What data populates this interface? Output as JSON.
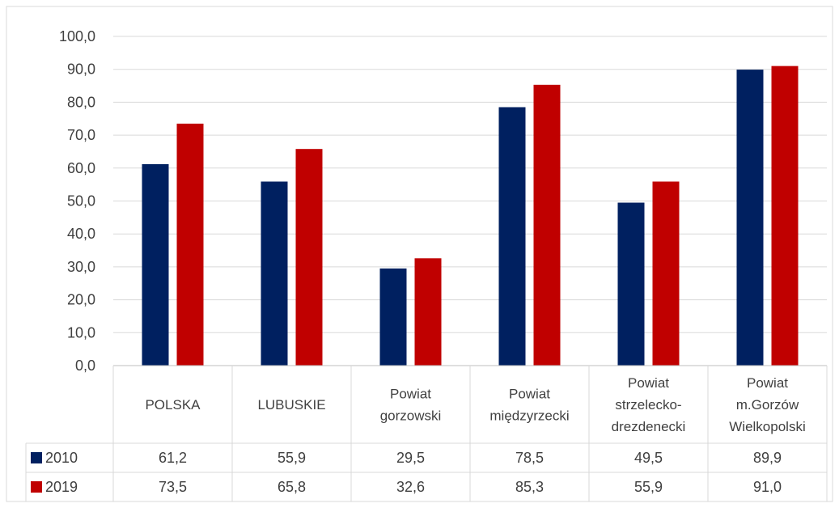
{
  "chart_data": {
    "type": "bar",
    "title": "",
    "xlabel": "",
    "ylabel": "",
    "ylim": [
      0,
      100
    ],
    "y_ticks": [
      "0,0",
      "10,0",
      "20,0",
      "30,0",
      "40,0",
      "50,0",
      "60,0",
      "70,0",
      "80,0",
      "90,0",
      "100,0"
    ],
    "grid": true,
    "legend": "data-table",
    "categories": [
      [
        "POLSKA"
      ],
      [
        "LUBUSKIE"
      ],
      [
        "Powiat",
        "gorzowski"
      ],
      [
        "Powiat",
        "międzyrzecki"
      ],
      [
        "Powiat",
        "strzelecko-",
        "drezdenecki"
      ],
      [
        "Powiat",
        "m.Gorzów",
        "Wielkopolski"
      ]
    ],
    "series": [
      {
        "name": "2010",
        "color": "#002060",
        "values": [
          61.2,
          55.9,
          29.5,
          78.5,
          49.5,
          89.9
        ],
        "labels": [
          "61,2",
          "55,9",
          "29,5",
          "78,5",
          "49,5",
          "89,9"
        ]
      },
      {
        "name": "2019",
        "color": "#C00000",
        "values": [
          73.5,
          65.8,
          32.6,
          85.3,
          55.9,
          91.0
        ],
        "labels": [
          "73,5",
          "65,8",
          "32,6",
          "85,3",
          "55,9",
          "91,0"
        ]
      }
    ]
  }
}
